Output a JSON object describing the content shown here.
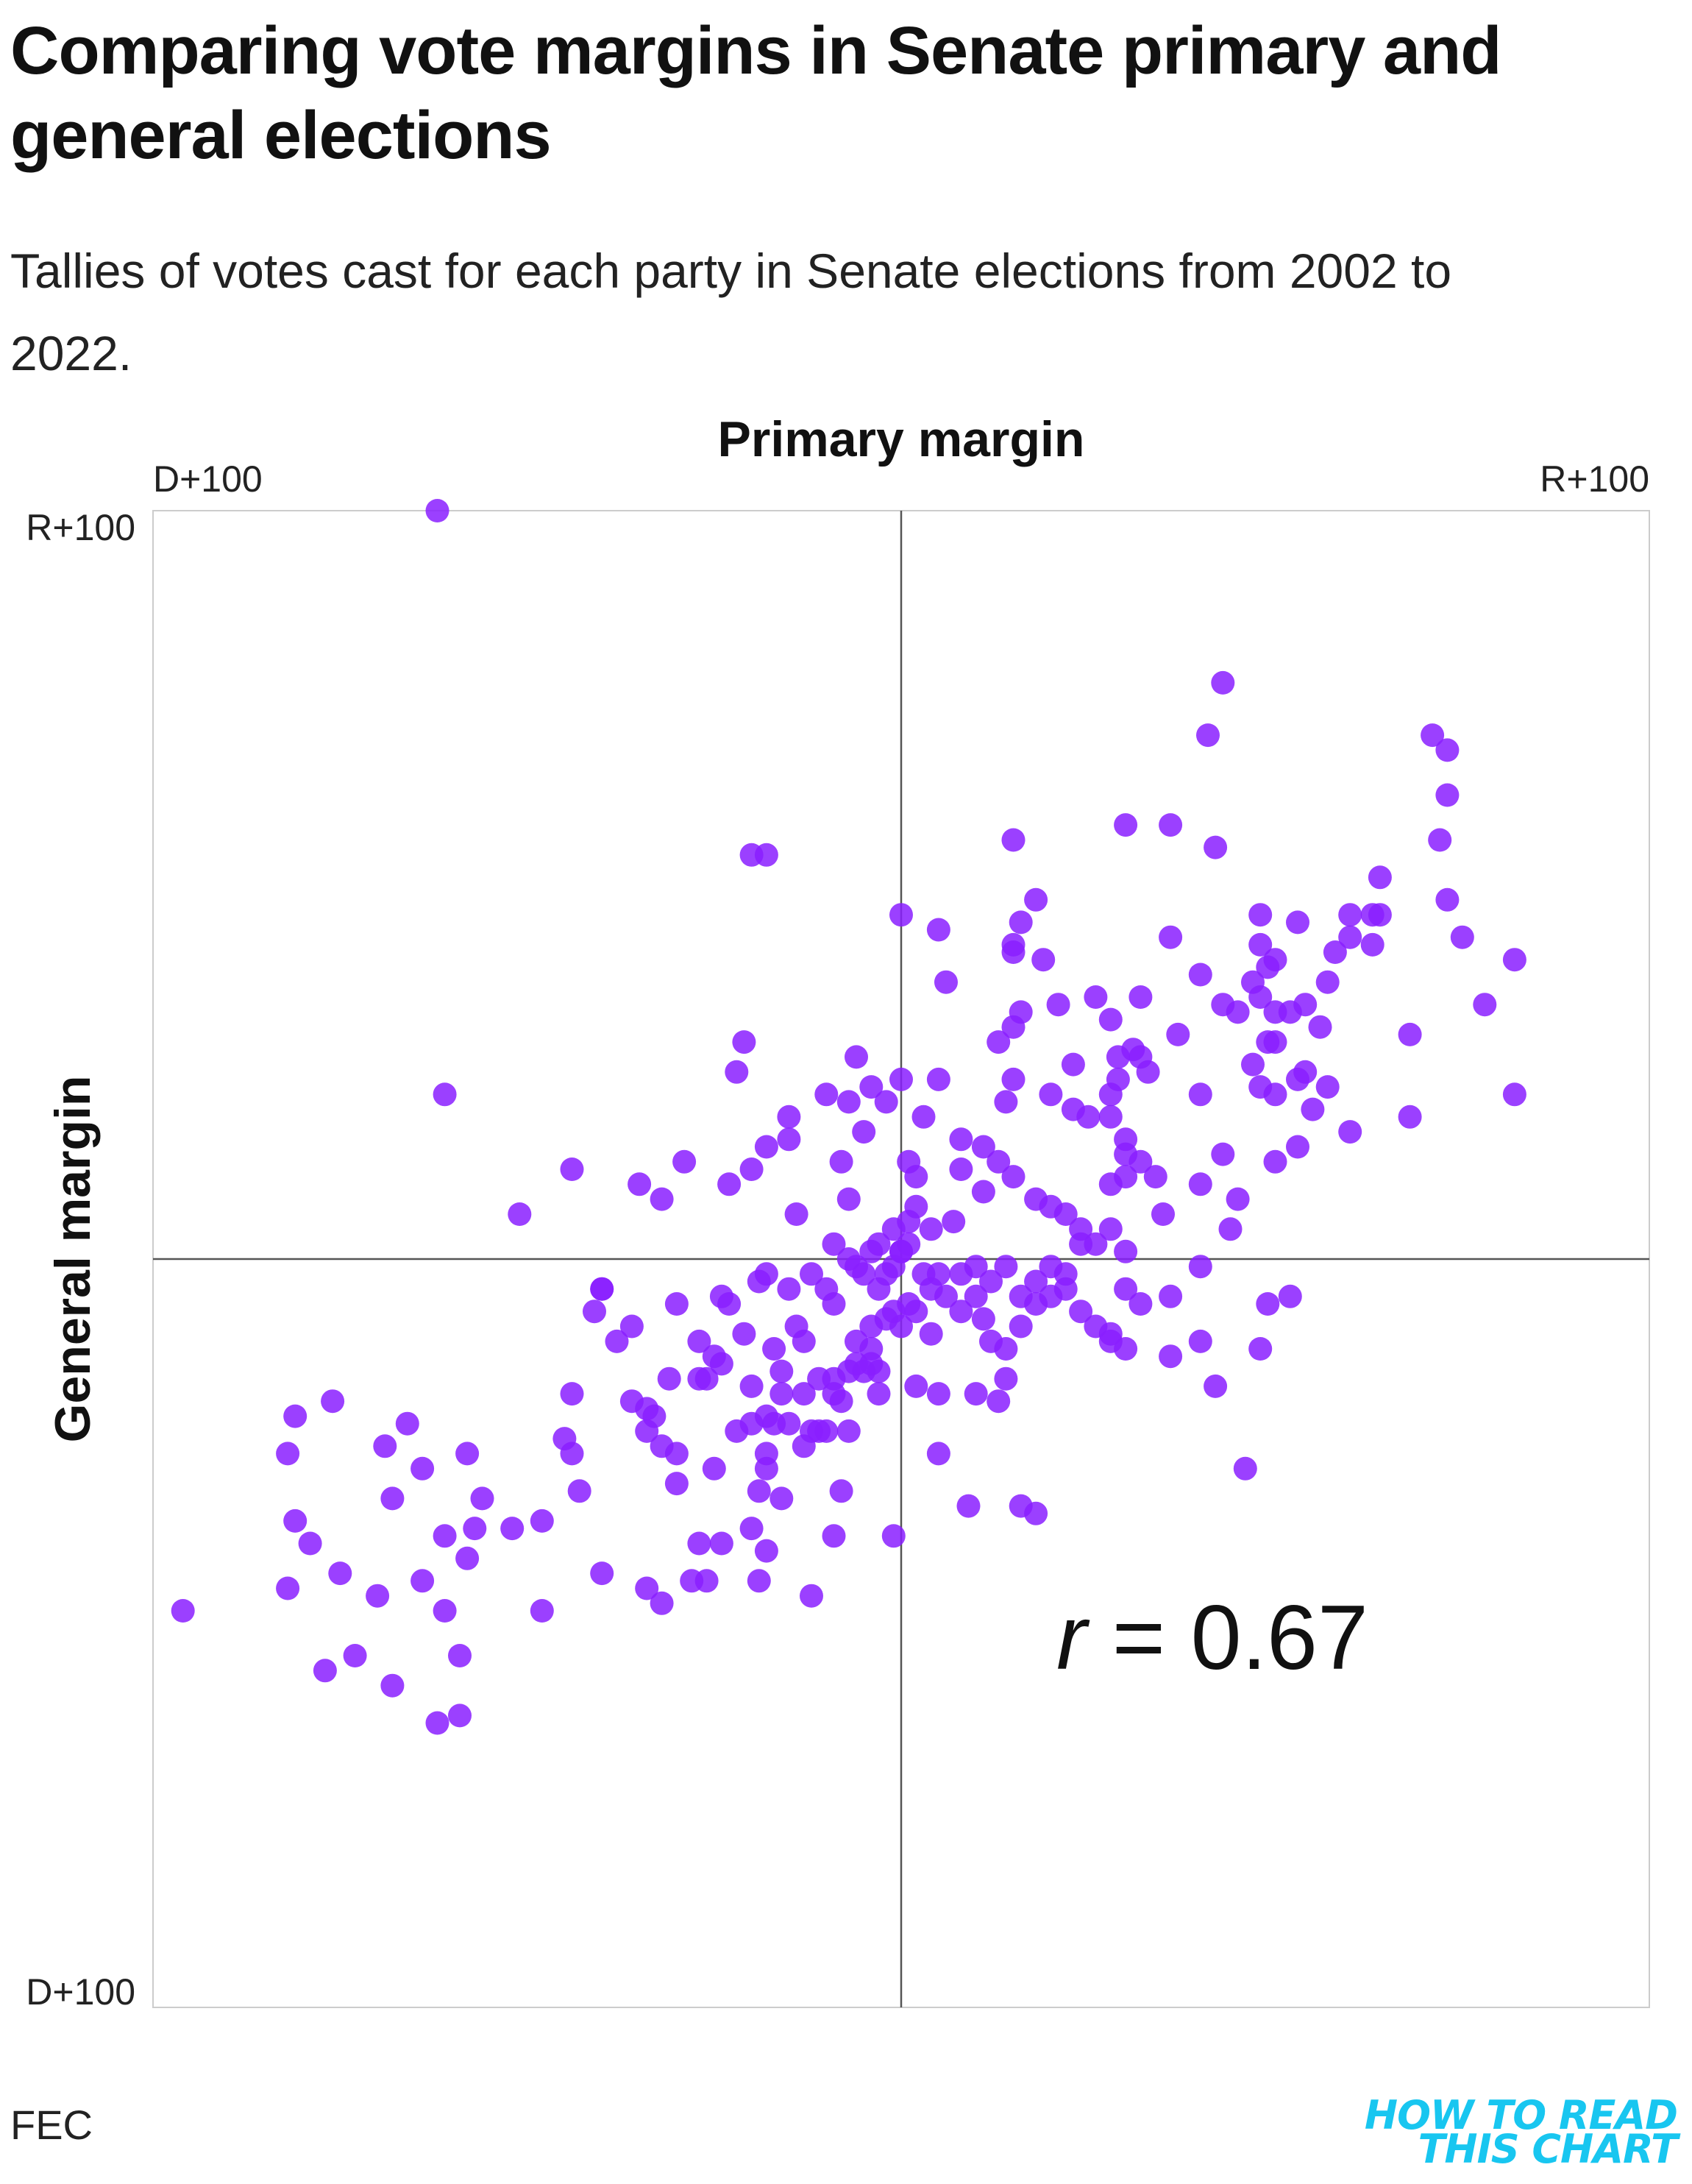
{
  "title": "Comparing vote margins in Senate primary and general elections",
  "subtitle": "Tallies of votes cast for each party in Senate elections from 2002 to 2022.",
  "source": "FEC",
  "brand": {
    "line1": "HOW TO READ",
    "line2": "THIS CHART"
  },
  "colors": {
    "points": "#8a1fff",
    "brand": "#18c6f0",
    "axes": "#555555",
    "frame": "#cccccc",
    "text": "#111111"
  },
  "chart_data": {
    "type": "scatter",
    "title": "Comparing vote margins in Senate primary and general elections",
    "xlabel": "Primary margin",
    "ylabel": "General margin",
    "xlim": [
      -100,
      100
    ],
    "ylim": [
      -100,
      100
    ],
    "x_tick_labels": {
      "left": "D+100",
      "right": "R+100"
    },
    "y_tick_labels": {
      "top": "R+100",
      "bottom": "D+100"
    },
    "annotation": {
      "italic": "r",
      "text": " = 0.67"
    },
    "correlation": 0.67,
    "points": [
      [
        -62,
        100
      ],
      [
        -61,
        22
      ],
      [
        -51,
        6
      ],
      [
        -44,
        12
      ],
      [
        -40,
        -4
      ],
      [
        -36,
        -9
      ],
      [
        -41,
        -7
      ],
      [
        -44,
        -18
      ],
      [
        -45,
        -24
      ],
      [
        -44,
        -26
      ],
      [
        -43,
        -31
      ],
      [
        -38,
        -11
      ],
      [
        -36,
        -19
      ],
      [
        -30,
        -6
      ],
      [
        -32,
        -25
      ],
      [
        -34,
        -23
      ],
      [
        -30,
        -30
      ],
      [
        -30,
        -26
      ],
      [
        -25,
        -28
      ],
      [
        -28,
        -43
      ],
      [
        -20,
        -36
      ],
      [
        -17,
        -22
      ],
      [
        -18,
        -28
      ],
      [
        -13,
        -25
      ],
      [
        -12,
        -23
      ],
      [
        -8,
        -19
      ],
      [
        -6,
        -11
      ],
      [
        -9,
        -6
      ],
      [
        -12,
        -2
      ],
      [
        -14,
        -9
      ],
      [
        -17,
        -12
      ],
      [
        -18,
        -21
      ],
      [
        -24,
        -14
      ],
      [
        -26,
        -16
      ],
      [
        -31,
        -16
      ],
      [
        -33,
        -21
      ],
      [
        -34,
        -20
      ],
      [
        -40,
        -4
      ],
      [
        -35,
        10
      ],
      [
        -32,
        8
      ],
      [
        -20,
        12
      ],
      [
        -23,
        10
      ],
      [
        -29,
        13
      ],
      [
        -19,
        -3
      ],
      [
        -15,
        -4
      ],
      [
        -14,
        6
      ],
      [
        -9,
        2
      ],
      [
        -7,
        0
      ],
      [
        -5,
        -2
      ],
      [
        -4,
        1
      ],
      [
        -3,
        2
      ],
      [
        -1,
        4
      ],
      [
        1,
        5
      ],
      [
        1,
        2
      ],
      [
        0,
        1
      ],
      [
        -2,
        -2
      ],
      [
        -3,
        -4
      ],
      [
        -1,
        -7
      ],
      [
        -4,
        -9
      ],
      [
        -6,
        -14
      ],
      [
        -5,
        -15
      ],
      [
        -3,
        -18
      ],
      [
        -7,
        -23
      ],
      [
        -9,
        -18
      ],
      [
        -11,
        -23
      ],
      [
        -19,
        -43
      ],
      [
        -13,
        -11
      ],
      [
        -16,
        -18
      ],
      [
        -18,
        -26
      ],
      [
        -24,
        -38
      ],
      [
        -16,
        -32
      ],
      [
        -18,
        -39
      ],
      [
        -12,
        -45
      ],
      [
        -9,
        -37
      ],
      [
        -20,
        -22
      ],
      [
        -26,
        -43
      ],
      [
        -32,
        -46
      ],
      [
        -34,
        -44
      ],
      [
        -40,
        -42
      ],
      [
        -48,
        -47
      ],
      [
        -57,
        -36
      ],
      [
        -61,
        -37
      ],
      [
        -76,
        -19
      ],
      [
        -81,
        -21
      ],
      [
        -82,
        -26
      ],
      [
        -79,
        -38
      ],
      [
        -82,
        -44
      ],
      [
        -75,
        -42
      ],
      [
        -66,
        -22
      ],
      [
        -69,
        -25
      ],
      [
        -64,
        -28
      ],
      [
        -58,
        -26
      ],
      [
        -61,
        -47
      ],
      [
        -64,
        -43
      ],
      [
        -70,
        -45
      ],
      [
        -73,
        -53
      ],
      [
        -68,
        -57
      ],
      [
        -59,
        -53
      ],
      [
        -59,
        -61
      ],
      [
        -62,
        -62
      ],
      [
        -77,
        -55
      ],
      [
        -96,
        -47
      ],
      [
        -81,
        -35
      ],
      [
        -68,
        -32
      ],
      [
        -48,
        -35
      ],
      [
        -56,
        -32
      ],
      [
        -52,
        -36
      ],
      [
        -58,
        -40
      ],
      [
        -18,
        54
      ],
      [
        -21,
        29
      ],
      [
        -22,
        25
      ],
      [
        -18,
        15
      ],
      [
        -15,
        16
      ],
      [
        -15,
        19
      ],
      [
        -10,
        22
      ],
      [
        -7,
        21
      ],
      [
        -6,
        27
      ],
      [
        -4,
        23
      ],
      [
        -2,
        21
      ],
      [
        0,
        24
      ],
      [
        -5,
        17
      ],
      [
        -8,
        13
      ],
      [
        -7,
        8
      ],
      [
        -6,
        -1
      ],
      [
        -10,
        -4
      ],
      [
        -18,
        -2
      ],
      [
        -23,
        -6
      ],
      [
        -27,
        -11
      ],
      [
        -24,
        -5
      ],
      [
        -22,
        -23
      ],
      [
        -19,
        -31
      ],
      [
        -27,
        -38
      ],
      [
        -15,
        -22
      ],
      [
        -10,
        -23
      ],
      [
        -7,
        -15
      ],
      [
        -11,
        -16
      ],
      [
        -13,
        -18
      ],
      [
        -9,
        -16
      ],
      [
        -20,
        -17
      ],
      [
        -25,
        -13
      ],
      [
        -27,
        -16
      ],
      [
        -21,
        -10
      ],
      [
        -16,
        -15
      ],
      [
        -8,
        -31
      ],
      [
        -1,
        -37
      ],
      [
        -3,
        -15
      ],
      [
        -4,
        -14
      ],
      [
        0,
        -9
      ],
      [
        2,
        -7
      ],
      [
        4,
        -4
      ],
      [
        6,
        -5
      ],
      [
        8,
        -7
      ],
      [
        10,
        -5
      ],
      [
        11,
        -8
      ],
      [
        12,
        -11
      ],
      [
        14,
        -12
      ],
      [
        16,
        -9
      ],
      [
        18,
        -6
      ],
      [
        20,
        -5
      ],
      [
        22,
        -4
      ],
      [
        24,
        -7
      ],
      [
        26,
        -9
      ],
      [
        28,
        -10
      ],
      [
        30,
        -12
      ],
      [
        32,
        -6
      ],
      [
        30,
        1
      ],
      [
        26,
        2
      ],
      [
        24,
        4
      ],
      [
        22,
        6
      ],
      [
        20,
        7
      ],
      [
        18,
        8
      ],
      [
        15,
        11
      ],
      [
        13,
        13
      ],
      [
        11,
        9
      ],
      [
        8,
        12
      ],
      [
        7,
        5
      ],
      [
        4,
        4
      ],
      [
        2,
        7
      ],
      [
        0,
        1
      ],
      [
        1,
        -6
      ],
      [
        3,
        -2
      ],
      [
        5,
        -2
      ],
      [
        8,
        -2
      ],
      [
        10,
        -1
      ],
      [
        12,
        -3
      ],
      [
        14,
        -1
      ],
      [
        16,
        -5
      ],
      [
        18,
        -3
      ],
      [
        20,
        -1
      ],
      [
        22,
        -2
      ],
      [
        24,
        2
      ],
      [
        28,
        4
      ],
      [
        28,
        10
      ],
      [
        30,
        11
      ],
      [
        30,
        14
      ],
      [
        32,
        13
      ],
      [
        34,
        11
      ],
      [
        35,
        6
      ],
      [
        40,
        10
      ],
      [
        44,
        4
      ],
      [
        45,
        8
      ],
      [
        43,
        14
      ],
      [
        50,
        13
      ],
      [
        53,
        15
      ],
      [
        55,
        20
      ],
      [
        53,
        24
      ],
      [
        50,
        22
      ],
      [
        48,
        23
      ],
      [
        47,
        26
      ],
      [
        49,
        29
      ],
      [
        50,
        33
      ],
      [
        52,
        33
      ],
      [
        54,
        34
      ],
      [
        56,
        31
      ],
      [
        57,
        37
      ],
      [
        58,
        41
      ],
      [
        60,
        43
      ],
      [
        63,
        46
      ],
      [
        68,
        30
      ],
      [
        68,
        19
      ],
      [
        60,
        17
      ],
      [
        57,
        23
      ],
      [
        54,
        25
      ],
      [
        50,
        29
      ],
      [
        47,
        37
      ],
      [
        45,
        33
      ],
      [
        48,
        35
      ],
      [
        40,
        38
      ],
      [
        36,
        43
      ],
      [
        33,
        25
      ],
      [
        32,
        35
      ],
      [
        29,
        27
      ],
      [
        28,
        22
      ],
      [
        29,
        24
      ],
      [
        28,
        19
      ],
      [
        25,
        19
      ],
      [
        23,
        20
      ],
      [
        20,
        22
      ],
      [
        15,
        24
      ],
      [
        14,
        21
      ],
      [
        11,
        15
      ],
      [
        8,
        16
      ],
      [
        5,
        24
      ],
      [
        3,
        19
      ],
      [
        2,
        11
      ],
      [
        1,
        13
      ],
      [
        0,
        46
      ],
      [
        5,
        44
      ],
      [
        6,
        37
      ],
      [
        13,
        29
      ],
      [
        15,
        31
      ],
      [
        15,
        41
      ],
      [
        16,
        45
      ],
      [
        19,
        40
      ],
      [
        21,
        34
      ],
      [
        23,
        26
      ],
      [
        26,
        35
      ],
      [
        28,
        32
      ],
      [
        31,
        28
      ],
      [
        32,
        27
      ],
      [
        37,
        30
      ],
      [
        40,
        22
      ],
      [
        43,
        34
      ],
      [
        41,
        70
      ],
      [
        43,
        77
      ],
      [
        48,
        42
      ],
      [
        48,
        46
      ],
      [
        49,
        39
      ],
      [
        50,
        40
      ],
      [
        53,
        45
      ],
      [
        64,
        51
      ],
      [
        60,
        46
      ],
      [
        63,
        42
      ],
      [
        64,
        46
      ],
      [
        72,
        56
      ],
      [
        73,
        62
      ],
      [
        73,
        68
      ],
      [
        71,
        70
      ],
      [
        73,
        48
      ],
      [
        78,
        34
      ],
      [
        82,
        40
      ],
      [
        82,
        22
      ],
      [
        75,
        43
      ],
      [
        36,
        58
      ],
      [
        30,
        58
      ],
      [
        42,
        55
      ],
      [
        15,
        56
      ],
      [
        -20,
        54
      ],
      [
        18,
        48
      ],
      [
        15,
        42
      ],
      [
        16,
        33
      ],
      [
        30,
        16
      ],
      [
        40,
        -1
      ],
      [
        48,
        -12
      ],
      [
        49,
        -6
      ],
      [
        52,
        -5
      ],
      [
        42,
        -17
      ],
      [
        36,
        -13
      ],
      [
        40,
        -11
      ],
      [
        28,
        -11
      ],
      [
        14,
        -16
      ],
      [
        10,
        -18
      ],
      [
        2,
        -17
      ],
      [
        4,
        -10
      ],
      [
        -4,
        -12
      ],
      [
        -2,
        -8
      ],
      [
        -1,
        -1
      ],
      [
        5,
        -18
      ],
      [
        13,
        -19
      ],
      [
        16,
        -33
      ],
      [
        18,
        -34
      ],
      [
        9,
        -33
      ],
      [
        5,
        -26
      ],
      [
        46,
        -28
      ],
      [
        36,
        -5
      ],
      [
        30,
        -4
      ]
    ]
  }
}
